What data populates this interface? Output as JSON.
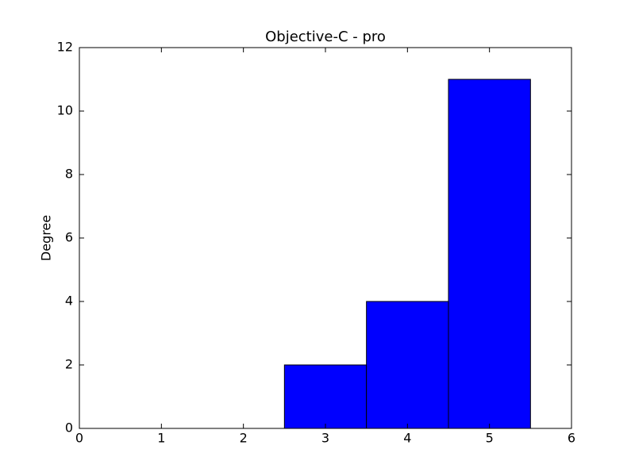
{
  "chart_data": {
    "type": "histogram",
    "title": "Objective-C - pro",
    "y_label": "Degree",
    "bins": [
      0.5,
      1.5,
      2.5,
      3.5,
      4.5,
      5.5
    ],
    "counts": [
      0,
      0,
      2,
      4,
      11
    ],
    "color": "#0000ff",
    "xlim": [
      0,
      6
    ],
    "xticks": [
      0,
      1,
      2,
      3,
      4,
      5,
      6
    ],
    "ylim": [
      0,
      12
    ],
    "yticks": [
      0,
      2,
      4,
      6,
      8,
      10,
      12
    ],
    "grid": false
  }
}
